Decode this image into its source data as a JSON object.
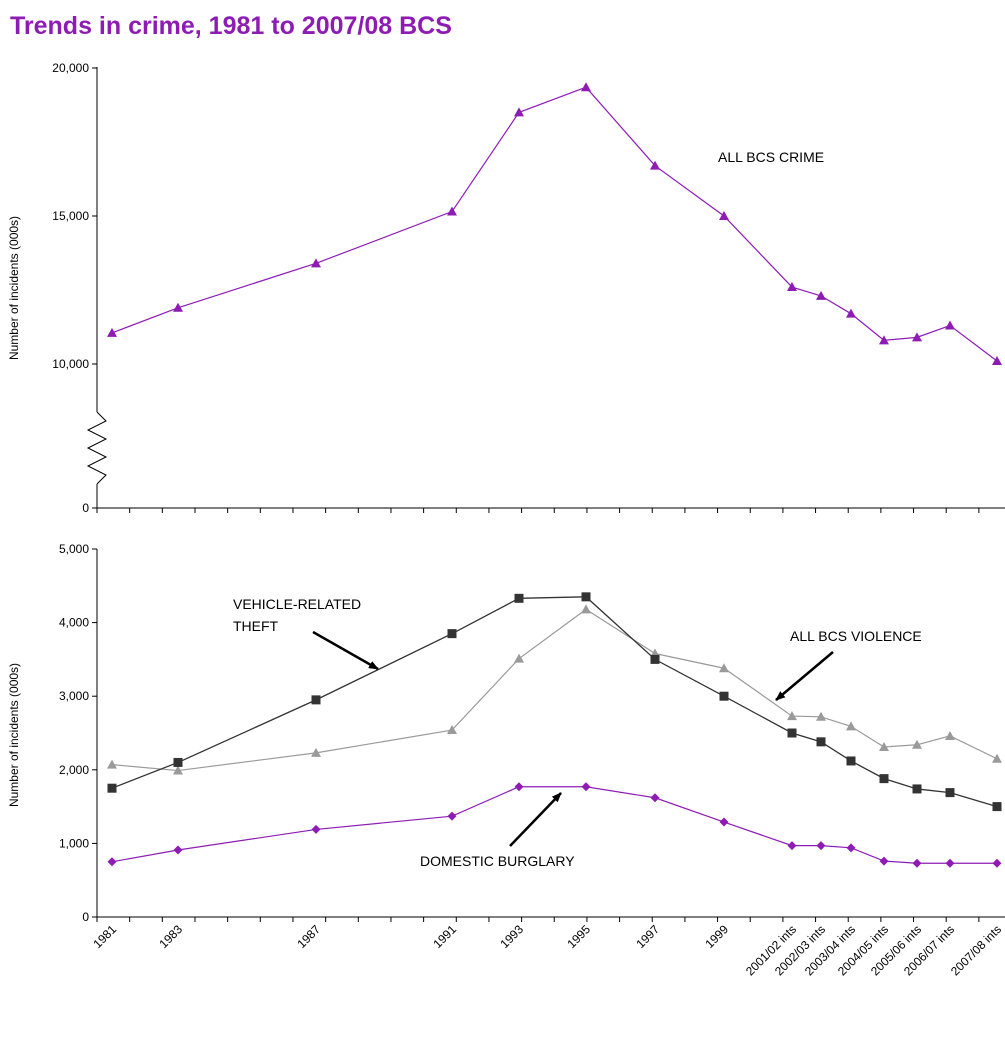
{
  "page": {
    "title": "Trends in crime, 1981 to 2007/08 BCS"
  },
  "colors": {
    "title": "#8e1cb4",
    "purple": "#8e1cb4",
    "dark": "#333333",
    "grey": "#9a9a9a",
    "axis": "#000000"
  },
  "chart_data": [
    {
      "type": "line",
      "id": "top",
      "ylabel": "Number of incidents (000s)",
      "ylim": [
        0,
        20000
      ],
      "axis_break": "zigzag between 0 and 10,000",
      "y_ticks": [
        {
          "value": 0,
          "label": "0"
        },
        {
          "value": 10000,
          "label": "10,000"
        },
        {
          "value": 15000,
          "label": "15,000"
        },
        {
          "value": 20000,
          "label": "20,000"
        }
      ],
      "x_tick_labels": [
        "1981",
        "1983",
        "1987",
        "1991",
        "1993",
        "1995",
        "1997",
        "1999",
        "2001/02 ints",
        "2002/03 ints",
        "2003/04 ints",
        "2004/05 ints",
        "2005/06 ints",
        "2006/07 ints",
        "2007/08 ints"
      ],
      "series": [
        {
          "name": "ALL BCS CRIME",
          "marker": "triangle",
          "color": "#8e1cb4",
          "points": [
            {
              "x": 1981,
              "y": 11050
            },
            {
              "x": 1983,
              "y": 11900
            },
            {
              "x": 1987,
              "y": 13400
            },
            {
              "x": 1991,
              "y": 15150
            },
            {
              "x": 1993,
              "y": 18500
            },
            {
              "x": 1995,
              "y": 19350
            },
            {
              "x": 1997,
              "y": 16700
            },
            {
              "x": 1999,
              "y": 15000
            },
            {
              "x": "2001/02 ints",
              "y": 12600
            },
            {
              "x": "2002/03 ints",
              "y": 12300
            },
            {
              "x": "2003/04 ints",
              "y": 11700
            },
            {
              "x": "2004/05 ints",
              "y": 10800
            },
            {
              "x": "2005/06 ints",
              "y": 10900
            },
            {
              "x": "2006/07 ints",
              "y": 11300
            },
            {
              "x": "2007/08 ints",
              "y": 10100
            }
          ]
        }
      ],
      "annotations": [
        {
          "text": "ALL BCS CRIME"
        }
      ]
    },
    {
      "type": "line",
      "id": "bottom",
      "ylabel": "Number of incidents (000s)",
      "ylim": [
        0,
        5000
      ],
      "y_ticks": [
        {
          "value": 0,
          "label": "0"
        },
        {
          "value": 1000,
          "label": "1,000"
        },
        {
          "value": 2000,
          "label": "2,000"
        },
        {
          "value": 3000,
          "label": "3,000"
        },
        {
          "value": 4000,
          "label": "4,000"
        },
        {
          "value": 5000,
          "label": "5,000"
        }
      ],
      "x_tick_labels": [
        "1981",
        "1983",
        "1987",
        "1991",
        "1993",
        "1995",
        "1997",
        "1999",
        "2001/02 ints",
        "2002/03 ints",
        "2003/04 ints",
        "2004/05 ints",
        "2005/06 ints",
        "2006/07 ints",
        "2007/08 ints"
      ],
      "series": [
        {
          "name": "VEHICLE-RELATED THEFT",
          "marker": "square",
          "color": "#333333",
          "points": [
            {
              "x": 1981,
              "y": 1750
            },
            {
              "x": 1983,
              "y": 2100
            },
            {
              "x": 1987,
              "y": 2950
            },
            {
              "x": 1991,
              "y": 3850
            },
            {
              "x": 1993,
              "y": 4330
            },
            {
              "x": 1995,
              "y": 4350
            },
            {
              "x": 1997,
              "y": 3500
            },
            {
              "x": 1999,
              "y": 3000
            },
            {
              "x": "2001/02 ints",
              "y": 2500
            },
            {
              "x": "2002/03 ints",
              "y": 2380
            },
            {
              "x": "2003/04 ints",
              "y": 2120
            },
            {
              "x": "2004/05 ints",
              "y": 1880
            },
            {
              "x": "2005/06 ints",
              "y": 1740
            },
            {
              "x": "2006/07 ints",
              "y": 1690
            },
            {
              "x": "2007/08 ints",
              "y": 1500
            }
          ]
        },
        {
          "name": "ALL BCS VIOLENCE",
          "marker": "triangle",
          "color": "#9a9a9a",
          "points": [
            {
              "x": 1981,
              "y": 2070
            },
            {
              "x": 1983,
              "y": 1990
            },
            {
              "x": 1987,
              "y": 2230
            },
            {
              "x": 1991,
              "y": 2540
            },
            {
              "x": 1993,
              "y": 3510
            },
            {
              "x": 1995,
              "y": 4180
            },
            {
              "x": 1997,
              "y": 3580
            },
            {
              "x": 1999,
              "y": 3380
            },
            {
              "x": "2001/02 ints",
              "y": 2730
            },
            {
              "x": "2002/03 ints",
              "y": 2720
            },
            {
              "x": "2003/04 ints",
              "y": 2590
            },
            {
              "x": "2004/05 ints",
              "y": 2310
            },
            {
              "x": "2005/06 ints",
              "y": 2340
            },
            {
              "x": "2006/07 ints",
              "y": 2460
            },
            {
              "x": "2007/08 ints",
              "y": 2150
            }
          ]
        },
        {
          "name": "DOMESTIC BURGLARY",
          "marker": "diamond",
          "color": "#8e1cb4",
          "points": [
            {
              "x": 1981,
              "y": 750
            },
            {
              "x": 1983,
              "y": 910
            },
            {
              "x": 1987,
              "y": 1190
            },
            {
              "x": 1991,
              "y": 1370
            },
            {
              "x": 1993,
              "y": 1770
            },
            {
              "x": 1995,
              "y": 1770
            },
            {
              "x": 1997,
              "y": 1620
            },
            {
              "x": 1999,
              "y": 1290
            },
            {
              "x": "2001/02 ints",
              "y": 970
            },
            {
              "x": "2002/03 ints",
              "y": 970
            },
            {
              "x": "2003/04 ints",
              "y": 940
            },
            {
              "x": "2004/05 ints",
              "y": 760
            },
            {
              "x": "2005/06 ints",
              "y": 730
            },
            {
              "x": "2006/07 ints",
              "y": 730
            },
            {
              "x": "2007/08 ints",
              "y": 730
            }
          ]
        }
      ],
      "annotations": [
        {
          "lines": [
            "VEHICLE-RELATED",
            "THEFT"
          ]
        },
        {
          "text": "ALL BCS VIOLENCE"
        },
        {
          "text": "DOMESTIC BURGLARY"
        }
      ]
    }
  ]
}
